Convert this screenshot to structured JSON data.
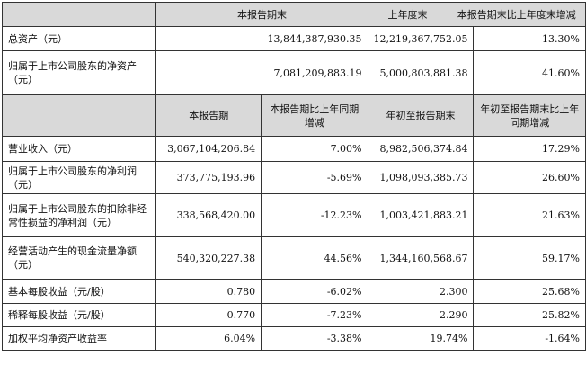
{
  "table1": {
    "headers": [
      "",
      "本报告期末",
      "上年度末",
      "本报告期末比上年度末增减"
    ],
    "rows": [
      [
        "总资产（元）",
        "13,844,387,930.35",
        "12,219,367,752.05",
        "13.30%"
      ],
      [
        "归属于上市公司股东的净资产（元）",
        "7,081,209,883.19",
        "5,000,803,881.38",
        "41.60%"
      ]
    ]
  },
  "table2": {
    "headers": [
      "",
      "本报告期",
      "本报告期比上年同期增减",
      "年初至报告期末",
      "年初至报告期末比上年同期增减"
    ],
    "rows": [
      [
        "营业收入（元）",
        "3,067,104,206.84",
        "7.00%",
        "8,982,506,374.84",
        "17.29%"
      ],
      [
        "归属于上市公司股东的净利润（元）",
        "373,775,193.96",
        "-5.69%",
        "1,098,093,385.73",
        "26.60%"
      ],
      [
        "归属于上市公司股东的扣除非经常性损益的净利润（元）",
        "338,568,420.00",
        "-12.23%",
        "1,003,421,883.21",
        "21.63%"
      ],
      [
        "经营活动产生的现金流量净额（元）",
        "540,320,227.38",
        "44.56%",
        "1,344,160,568.67",
        "59.17%"
      ],
      [
        "基本每股收益（元/股）",
        "0.780",
        "-6.02%",
        "2.300",
        "25.68%"
      ],
      [
        "稀释每股收益（元/股）",
        "0.770",
        "-7.23%",
        "2.290",
        "25.82%"
      ],
      [
        "加权平均净资产收益率",
        "6.04%",
        "-3.38%",
        "19.74%",
        "-1.64%"
      ]
    ]
  }
}
